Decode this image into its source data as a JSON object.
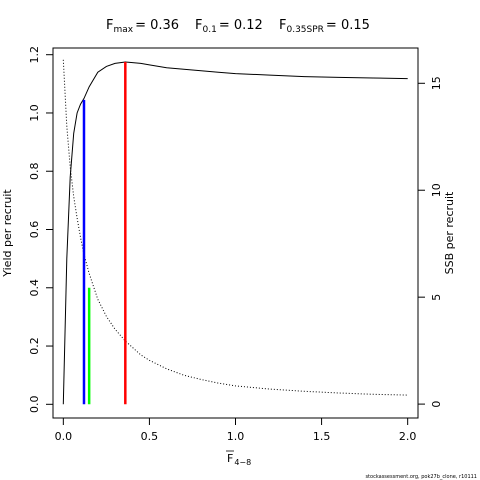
{
  "chart_data": {
    "type": "line",
    "title": {
      "fmax": {
        "label": "F",
        "sub": "max",
        "value": "= 0.36"
      },
      "f01": {
        "label": "F",
        "sub": "0.1",
        "value": "= 0.12"
      },
      "f035": {
        "label": "F",
        "sub": "0.35SPR",
        "value": "= 0.15"
      }
    },
    "xlabel": {
      "main": "F",
      "sub": "4−8"
    },
    "ylabel": "Yield per recruit",
    "y2label": "SSB per recruit",
    "xlim": [
      -0.06,
      2.06
    ],
    "ylim": [
      -0.047,
      1.223
    ],
    "y2lim": [
      -0.65,
      16.65
    ],
    "x_ticks": [
      "0.0",
      "0.5",
      "1.0",
      "1.5",
      "2.0"
    ],
    "y_ticks": [
      "0.0",
      "0.2",
      "0.4",
      "0.6",
      "0.8",
      "1.0",
      "1.2"
    ],
    "y2_ticks": [
      "0",
      "5",
      "10",
      "15"
    ],
    "grid": false,
    "series": [
      {
        "axis": "left",
        "style": "solid",
        "color": "#000000",
        "x": [
          0,
          0.02,
          0.04,
          0.06,
          0.08,
          0.1,
          0.12,
          0.15,
          0.2,
          0.25,
          0.3,
          0.36,
          0.45,
          0.5,
          0.6,
          0.7,
          0.8,
          0.9,
          1.0,
          1.2,
          1.4,
          1.6,
          1.8,
          2.0
        ],
        "values": [
          0,
          0.5,
          0.78,
          0.93,
          1.0,
          1.03,
          1.05,
          1.09,
          1.14,
          1.16,
          1.17,
          1.175,
          1.17,
          1.165,
          1.155,
          1.15,
          1.145,
          1.14,
          1.135,
          1.13,
          1.125,
          1.122,
          1.12,
          1.118
        ]
      },
      {
        "axis": "right",
        "style": "dotted",
        "color": "#000000",
        "x": [
          0,
          0.02,
          0.04,
          0.06,
          0.08,
          0.1,
          0.12,
          0.15,
          0.2,
          0.25,
          0.3,
          0.36,
          0.45,
          0.5,
          0.6,
          0.7,
          0.8,
          0.9,
          1.0,
          1.2,
          1.4,
          1.6,
          1.8,
          2.0
        ],
        "values": [
          16.1,
          13.0,
          11.1,
          9.7,
          8.7,
          7.8,
          7.0,
          6.1,
          4.9,
          4.1,
          3.5,
          2.95,
          2.3,
          2.05,
          1.65,
          1.35,
          1.15,
          0.98,
          0.85,
          0.7,
          0.6,
          0.52,
          0.46,
          0.42
        ]
      }
    ],
    "reference_lines": [
      {
        "name": "F0.1",
        "x": 0.12,
        "y": 1.045,
        "color": "#0000ff"
      },
      {
        "name": "F0.35SPR",
        "x": 0.15,
        "y": 0.4,
        "color": "#00ff00"
      },
      {
        "name": "Fmax",
        "x": 0.36,
        "y": 1.175,
        "color": "#ff0000"
      }
    ]
  },
  "credit": "stockassessment.org, pok27b_clone, r10111"
}
